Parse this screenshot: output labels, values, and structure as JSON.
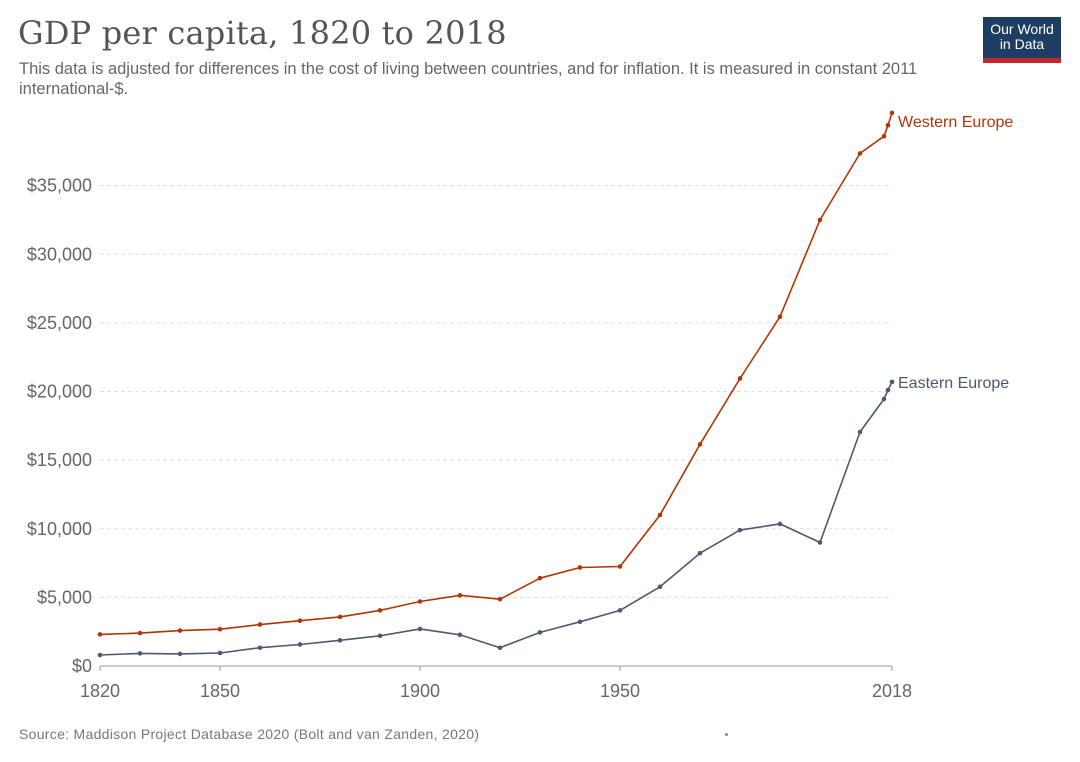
{
  "header": {
    "title": "GDP per capita, 1820 to 2018",
    "subtitle": "This data is adjusted for differences in the cost of living between countries, and for inflation. It is measured in constant 2011 international-$."
  },
  "logo": {
    "line1": "Our World",
    "line2": "in Data"
  },
  "footer": {
    "source": "Source: Maddison Project Database 2020 (Bolt and van Zanden, 2020)"
  },
  "chart_data": {
    "type": "line",
    "xlim": [
      1820,
      2018
    ],
    "ylim": [
      0,
      40000
    ],
    "x_ticks": [
      {
        "value": 1820,
        "label": "1820"
      },
      {
        "value": 1850,
        "label": "1850"
      },
      {
        "value": 1900,
        "label": "1900"
      },
      {
        "value": 1950,
        "label": "1950"
      },
      {
        "value": 2018,
        "label": "2018"
      }
    ],
    "y_ticks": [
      {
        "value": 0,
        "label": "$0"
      },
      {
        "value": 5000,
        "label": "$5,000"
      },
      {
        "value": 10000,
        "label": "$10,000"
      },
      {
        "value": 15000,
        "label": "$15,000"
      },
      {
        "value": 20000,
        "label": "$20,000"
      },
      {
        "value": 25000,
        "label": "$25,000"
      },
      {
        "value": 30000,
        "label": "$30,000"
      },
      {
        "value": 35000,
        "label": "$35,000"
      }
    ],
    "grid": true,
    "series": [
      {
        "name": "Western Europe",
        "color": "#b13507",
        "points": [
          [
            1820,
            2300
          ],
          [
            1830,
            2400
          ],
          [
            1840,
            2580
          ],
          [
            1850,
            2680
          ],
          [
            1860,
            3020
          ],
          [
            1870,
            3300
          ],
          [
            1880,
            3580
          ],
          [
            1890,
            4050
          ],
          [
            1900,
            4700
          ],
          [
            1910,
            5150
          ],
          [
            1920,
            4870
          ],
          [
            1930,
            6400
          ],
          [
            1940,
            7180
          ],
          [
            1950,
            7250
          ],
          [
            1960,
            11000
          ],
          [
            1970,
            16150
          ],
          [
            1980,
            20950
          ],
          [
            1990,
            25450
          ],
          [
            2000,
            32500
          ],
          [
            2010,
            37350
          ],
          [
            2016,
            38600
          ],
          [
            2017,
            39400
          ],
          [
            2018,
            40300
          ]
        ]
      },
      {
        "name": "Eastern Europe",
        "color": "#4c5a6e",
        "points": [
          [
            1820,
            800
          ],
          [
            1830,
            920
          ],
          [
            1840,
            880
          ],
          [
            1850,
            950
          ],
          [
            1860,
            1330
          ],
          [
            1870,
            1570
          ],
          [
            1880,
            1870
          ],
          [
            1890,
            2200
          ],
          [
            1900,
            2700
          ],
          [
            1910,
            2270
          ],
          [
            1920,
            1330
          ],
          [
            1930,
            2450
          ],
          [
            1940,
            3220
          ],
          [
            1950,
            4050
          ],
          [
            1960,
            5770
          ],
          [
            1970,
            8220
          ],
          [
            1980,
            9900
          ],
          [
            1990,
            10350
          ],
          [
            2000,
            9000
          ],
          [
            2010,
            17050
          ],
          [
            2016,
            19450
          ],
          [
            2017,
            20100
          ],
          [
            2018,
            20700
          ]
        ]
      }
    ]
  }
}
